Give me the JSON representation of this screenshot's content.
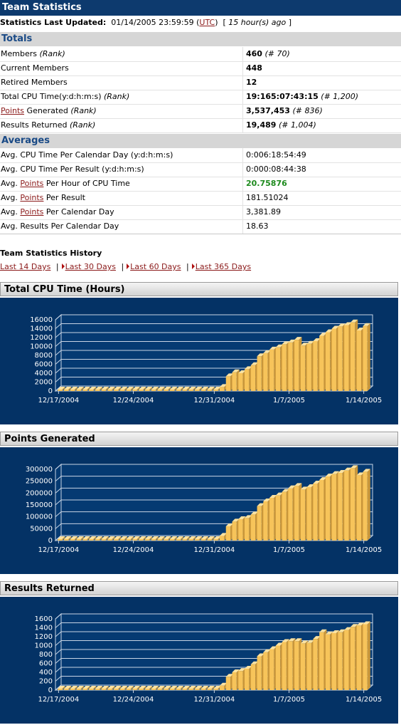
{
  "header": {
    "title": "Team Statistics"
  },
  "updated": {
    "label": "Statistics Last Updated:",
    "datetime": "01/14/2005 23:59:59",
    "tz": "UTC",
    "ago": "15 hour(s) ago"
  },
  "totals": {
    "heading": "Totals",
    "rows": [
      {
        "label_pre": "Members ",
        "label_em": "(Rank)",
        "value": "460",
        "rank": "(# 70)"
      },
      {
        "label_pre": "Current Members",
        "label_em": "",
        "value": "448",
        "rank": ""
      },
      {
        "label_pre": "Retired Members",
        "label_em": "",
        "value": "12",
        "rank": ""
      },
      {
        "label_pre": "Total CPU Time(y:d:h:m:s) ",
        "label_em": "(Rank)",
        "value": "19:165:07:43:15",
        "rank": "(# 1,200)"
      },
      {
        "label_link": "Points",
        "label_pre": " Generated ",
        "label_em": "(Rank)",
        "value": "3,537,453",
        "rank": "(# 836)"
      },
      {
        "label_pre": "Results Returned ",
        "label_em": "(Rank)",
        "value": "19,489",
        "rank": "(# 1,004)"
      }
    ]
  },
  "averages": {
    "heading": "Averages",
    "rows": [
      {
        "label_pre": "Avg. CPU Time Per Calendar Day (y:d:h:m:s)",
        "value": "0:006:18:54:49"
      },
      {
        "label_pre": "Avg. CPU Time Per Result (y:d:h:m:s)",
        "value": "0:000:08:44:38"
      },
      {
        "label_pre": "Avg. ",
        "label_link": "Points",
        "label_post": " Per Hour of CPU Time",
        "value": "20.75876"
      },
      {
        "label_pre": "Avg. ",
        "label_link": "Points",
        "label_post": " Per Result",
        "value": "181.51024"
      },
      {
        "label_pre": "Avg. ",
        "label_link": "Points",
        "label_post": " Per Calendar Day",
        "value": "3,381.89"
      },
      {
        "label_pre": "Avg. Results Per Calendar Day",
        "value": "18.63"
      }
    ]
  },
  "history": {
    "title": "Team Statistics History",
    "links": [
      "Last 14 Days",
      "Last 30 Days",
      "Last 60 Days",
      "Last 365 Days"
    ],
    "separator": "|"
  },
  "colors": {
    "header_bg": "#0d3a6e",
    "chart_bg": "#043265",
    "bar_face": "#f7c45a",
    "bar_top": "#fde2a0",
    "bar_side": "#c9963a",
    "link": "#8b1a1a",
    "green": "#1d8a1d"
  },
  "chart_data": [
    {
      "type": "bar",
      "title": "Total CPU Time (Hours)",
      "x_ticks": [
        "12/17/2004",
        "12/24/2004",
        "12/31/2004",
        "1/7/2005",
        "1/14/2005"
      ],
      "ylim": [
        0,
        16000
      ],
      "y_ticks": [
        0,
        2000,
        4000,
        6000,
        8000,
        10000,
        12000,
        14000,
        16000
      ],
      "values": [
        0,
        0,
        0,
        0,
        0,
        0,
        0,
        0,
        0,
        0,
        0,
        0,
        0,
        0,
        0,
        0,
        0,
        0,
        0,
        0,
        0,
        0,
        0,
        0,
        0,
        0,
        900,
        3300,
        4200,
        4000,
        4900,
        5800,
        7800,
        8500,
        9300,
        9800,
        10500,
        10900,
        11500,
        10200,
        10600,
        11200,
        12400,
        13200,
        14000,
        14500,
        14800,
        15400,
        13600,
        14600
      ]
    },
    {
      "type": "bar",
      "title": "Points Generated",
      "x_ticks": [
        "12/17/2004",
        "12/24/2004",
        "12/31/2004",
        "1/7/2005",
        "1/14/2005"
      ],
      "ylim": [
        0,
        300000
      ],
      "y_ticks": [
        0,
        50000,
        100000,
        150000,
        200000,
        250000,
        300000
      ],
      "values": [
        0,
        0,
        0,
        0,
        0,
        0,
        0,
        0,
        0,
        0,
        0,
        0,
        0,
        0,
        0,
        0,
        0,
        0,
        0,
        0,
        0,
        0,
        0,
        0,
        0,
        0,
        20000,
        60000,
        80000,
        90000,
        95000,
        110000,
        145000,
        165000,
        180000,
        190000,
        205000,
        220000,
        230000,
        215000,
        225000,
        240000,
        255000,
        270000,
        280000,
        285000,
        295000,
        305000,
        275000,
        290000
      ]
    },
    {
      "type": "bar",
      "title": "Results Returned",
      "x_ticks": [
        "12/17/2004",
        "12/24/2004",
        "12/31/2004",
        "1/7/2005",
        "1/14/2005"
      ],
      "ylim": [
        0,
        1600
      ],
      "y_ticks": [
        0,
        200,
        400,
        600,
        800,
        1000,
        1200,
        1400,
        1600
      ],
      "values": [
        0,
        0,
        0,
        0,
        0,
        0,
        0,
        0,
        0,
        0,
        0,
        0,
        0,
        0,
        0,
        0,
        0,
        0,
        0,
        0,
        0,
        0,
        0,
        0,
        0,
        0,
        100,
        300,
        400,
        430,
        480,
        580,
        760,
        850,
        920,
        1000,
        1080,
        1100,
        1100,
        1050,
        1060,
        1150,
        1300,
        1250,
        1280,
        1300,
        1350,
        1420,
        1450,
        1480
      ]
    }
  ]
}
